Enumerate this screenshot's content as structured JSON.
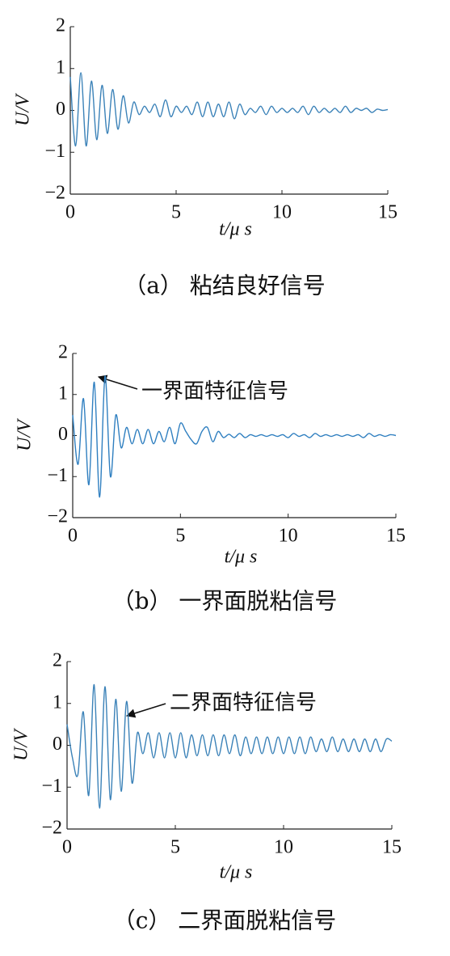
{
  "chart_data": [
    {
      "type": "line",
      "caption": "（a） 粘结良好信号",
      "xlabel": "t/μ s",
      "ylabel": "U/V",
      "x": [
        0,
        0.25,
        0.5,
        0.75,
        1,
        1.25,
        1.5,
        1.75,
        2,
        2.25,
        2.5,
        2.75,
        3,
        3.25,
        3.5,
        3.75,
        4,
        4.25,
        4.5,
        4.75,
        5,
        5.25,
        5.5,
        5.75,
        6,
        6.25,
        6.5,
        6.75,
        7,
        7.25,
        7.5,
        7.75,
        8,
        8.25,
        8.5,
        8.75,
        9,
        9.25,
        9.5,
        9.75,
        10,
        10.25,
        10.5,
        10.75,
        11,
        11.25,
        11.5,
        11.75,
        12,
        12.25,
        12.5,
        12.75,
        13,
        13.25,
        13.5,
        13.75,
        14,
        14.25,
        14.5,
        14.75,
        15
      ],
      "series": [
        {
          "color": "#3b82b8",
          "values": [
            0.8,
            -0.85,
            0.9,
            -0.85,
            0.7,
            -0.7,
            0.6,
            -0.55,
            0.5,
            -0.45,
            0.35,
            -0.3,
            0.2,
            -0.1,
            0.1,
            -0.05,
            0.15,
            -0.15,
            0.25,
            -0.15,
            0.1,
            -0.05,
            0.1,
            -0.1,
            0.2,
            -0.15,
            0.2,
            -0.15,
            0.15,
            -0.15,
            0.2,
            -0.2,
            0.15,
            -0.1,
            0.05,
            -0.05,
            0.1,
            -0.1,
            0.1,
            -0.05,
            0.05,
            -0.05,
            0.05,
            -0.05,
            0.1,
            -0.1,
            0.1,
            -0.05,
            0.05,
            -0.05,
            0.05,
            -0.05,
            0.1,
            -0.05,
            0.05,
            0,
            0.05,
            -0.05,
            0.03,
            0,
            0.02
          ]
        }
      ],
      "xlim": [
        0,
        15
      ],
      "ylim": [
        -2,
        2
      ],
      "xticks": [
        0,
        5,
        10,
        15
      ],
      "yticks": [
        {
          "value": -2,
          "label": "−2"
        },
        {
          "value": -1,
          "label": "−1"
        },
        0,
        1,
        2
      ]
    },
    {
      "type": "line",
      "caption": "（b） 一界面脱粘信号",
      "xlabel": "t/μ s",
      "ylabel": "U/V",
      "annotation": "一界面特征信号",
      "x": [
        0,
        0.25,
        0.5,
        0.75,
        1,
        1.25,
        1.5,
        1.75,
        2,
        2.25,
        2.5,
        2.75,
        3,
        3.25,
        3.5,
        3.75,
        4,
        4.25,
        4.5,
        4.75,
        5,
        5.25,
        5.5,
        5.75,
        6,
        6.25,
        6.5,
        6.75,
        7,
        7.25,
        7.5,
        7.75,
        8,
        8.25,
        8.5,
        8.75,
        9,
        9.25,
        9.5,
        9.75,
        10,
        10.25,
        10.5,
        10.75,
        11,
        11.25,
        11.5,
        11.75,
        12,
        12.25,
        12.5,
        12.75,
        13,
        13.25,
        13.5,
        13.75,
        14,
        14.25,
        14.5,
        14.75,
        15
      ],
      "series": [
        {
          "color": "#2f7fc0",
          "values": [
            0.5,
            -0.7,
            0.9,
            -1.2,
            1.3,
            -1.5,
            1.45,
            -1.0,
            0.5,
            -0.3,
            0.2,
            -0.2,
            0.15,
            -0.2,
            0.15,
            -0.2,
            0.1,
            -0.15,
            0.2,
            -0.2,
            0.3,
            0.1,
            -0.1,
            -0.2,
            0.1,
            0.2,
            -0.15,
            0.1,
            -0.05,
            0.03,
            -0.05,
            0.05,
            -0.05,
            0.02,
            -0.02,
            0.02,
            -0.02,
            0.02,
            -0.02,
            0.02,
            -0.05,
            0.05,
            -0.02,
            0.02,
            -0.05,
            0.05,
            -0.02,
            0.02,
            -0.02,
            0.02,
            -0.02,
            0.02,
            -0.02,
            0.02,
            -0.05,
            0.05,
            -0.02,
            0.02,
            -0.02,
            0.02,
            0
          ]
        }
      ],
      "xlim": [
        0,
        15
      ],
      "ylim": [
        -2,
        2
      ],
      "xticks": [
        0,
        5,
        10,
        15
      ],
      "yticks": [
        {
          "value": -2,
          "label": "−2"
        },
        {
          "value": -1,
          "label": "−1"
        },
        0,
        1,
        2
      ]
    },
    {
      "type": "line",
      "caption": "（c） 二界面脱粘信号",
      "xlabel": "t/μ s",
      "ylabel": "U/V",
      "annotation": "二界面特征信号",
      "x": [
        0,
        0.25,
        0.5,
        0.75,
        1,
        1.25,
        1.5,
        1.75,
        2,
        2.25,
        2.5,
        2.75,
        3,
        3.25,
        3.5,
        3.75,
        4,
        4.25,
        4.5,
        4.75,
        5,
        5.25,
        5.5,
        5.75,
        6,
        6.25,
        6.5,
        6.75,
        7,
        7.25,
        7.5,
        7.75,
        8,
        8.25,
        8.5,
        8.75,
        9,
        9.25,
        9.5,
        9.75,
        10,
        10.25,
        10.5,
        10.75,
        11,
        11.25,
        11.5,
        11.75,
        12,
        12.25,
        12.5,
        12.75,
        13,
        13.25,
        13.5,
        13.75,
        14,
        14.25,
        14.5,
        14.75,
        15
      ],
      "series": [
        {
          "color": "#3b82b8",
          "values": [
            0.5,
            -0.3,
            -0.7,
            0.8,
            -1.2,
            1.45,
            -1.5,
            1.4,
            -1.3,
            1.1,
            -1.1,
            1.05,
            -0.9,
            0.3,
            -0.2,
            0.3,
            -0.3,
            0.3,
            -0.3,
            0.3,
            -0.3,
            0.3,
            -0.3,
            0.25,
            -0.25,
            0.25,
            -0.25,
            0.25,
            -0.25,
            0.25,
            -0.2,
            0.25,
            -0.25,
            0.2,
            -0.2,
            0.2,
            -0.2,
            0.2,
            -0.2,
            0.2,
            -0.2,
            0.2,
            -0.2,
            0.2,
            -0.2,
            0.2,
            -0.15,
            0.15,
            -0.15,
            0.2,
            -0.15,
            0.15,
            -0.15,
            0.15,
            -0.15,
            0.15,
            -0.15,
            0.15,
            -0.15,
            0.15,
            0.1
          ]
        }
      ],
      "xlim": [
        0,
        15
      ],
      "ylim": [
        -2,
        2
      ],
      "xticks": [
        0,
        5,
        10,
        15
      ],
      "yticks": [
        {
          "value": -2,
          "label": "−2"
        },
        {
          "value": -1,
          "label": "−1"
        },
        0,
        1,
        2
      ]
    }
  ]
}
